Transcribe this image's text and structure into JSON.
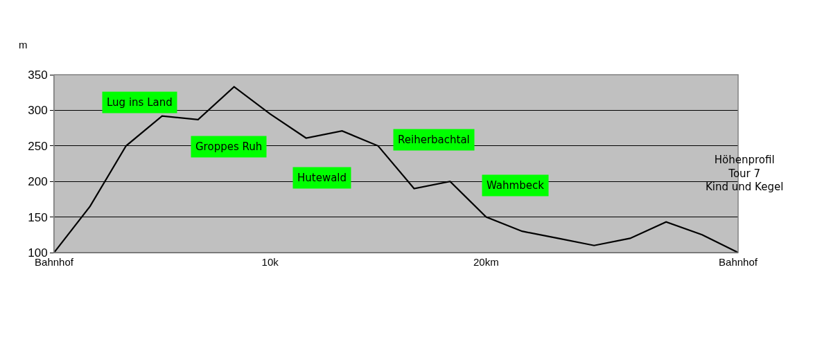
{
  "chart_data": {
    "type": "line",
    "title": "Höhenprofil\nTour 7\nKind und Kegel",
    "ylabel": "m",
    "categories": [
      "Bahnhof",
      null,
      null,
      null,
      null,
      null,
      "10k",
      null,
      null,
      null,
      null,
      null,
      "20km",
      null,
      null,
      null,
      null,
      null,
      null,
      "Bahnhof"
    ],
    "series": [
      {
        "color": "#000000",
        "values": [
          100,
          165,
          250,
          292,
          287,
          333,
          295,
          261,
          271,
          250,
          190,
          200,
          150,
          130,
          120,
          110,
          120,
          143,
          125,
          100
        ]
      }
    ],
    "ylim": [
      100,
      350
    ],
    "yticks": [
      100,
      150,
      200,
      250,
      300,
      350
    ],
    "grid": "y",
    "legend": false,
    "marker": "none",
    "line_style": "solid",
    "annotations": [
      "Lug ins Land",
      "Groppes Ruh",
      "Hutewald",
      "Reiherbachtal",
      "Wahmbeck"
    ]
  }
}
